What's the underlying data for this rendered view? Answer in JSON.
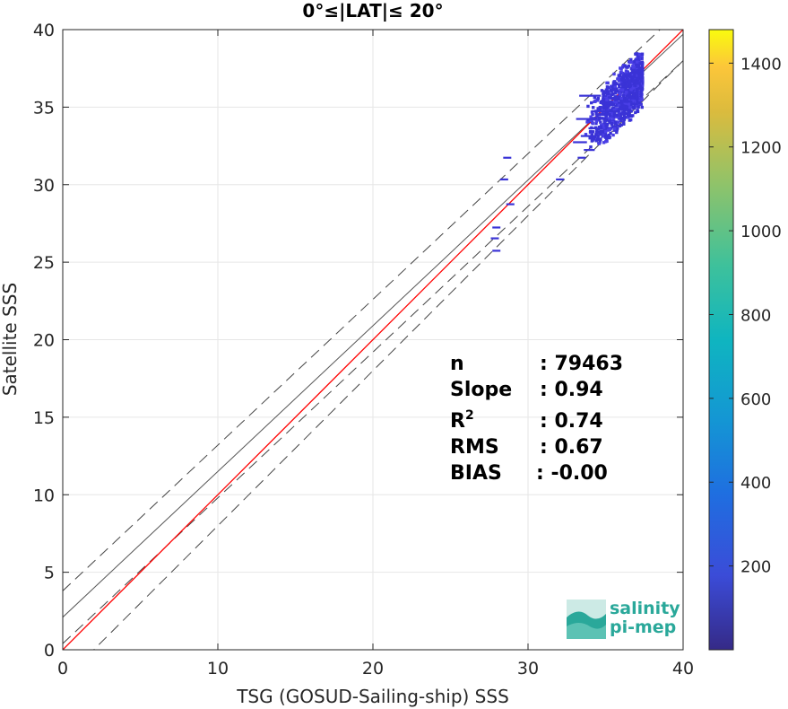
{
  "chart_data": {
    "type": "heatmap",
    "title": "0°≤|LAT|≤ 20°",
    "xlabel": "TSG (GOSUD-Sailing-ship) SSS",
    "ylabel": "Satellite SSS",
    "xlim": [
      0,
      40
    ],
    "ylim": [
      0,
      40
    ],
    "xticks": [
      "0",
      "10",
      "20",
      "30",
      "40"
    ],
    "yticks": [
      "0",
      "5",
      "10",
      "15",
      "20",
      "25",
      "30",
      "35",
      "40"
    ],
    "grid": true,
    "colorbar": {
      "range": [
        0,
        1480
      ],
      "ticks": [
        "200",
        "400",
        "600",
        "800",
        "1000",
        "1200",
        "1400"
      ],
      "colormap": "parula"
    },
    "lines": {
      "identity": {
        "slope": 1,
        "intercept": 0,
        "color": "#000000"
      },
      "identity_offsets": [
        2,
        -2
      ],
      "fit": {
        "slope": 0.94,
        "intercept": 2.1,
        "color": "#555555"
      },
      "fit_bounds": {
        "upper_intercept": 3.8,
        "lower_intercept": 0.4,
        "color": "#444444"
      },
      "regression": {
        "slope": 1.0,
        "intercept": 0,
        "color": "#ff0000"
      }
    },
    "density_cluster": {
      "x_range": [
        33,
        37.3
      ],
      "y_range": [
        32.5,
        38.6
      ],
      "color": "#3a33d6"
    },
    "sparse_points": [
      {
        "x": 28.4,
        "y": 31.8
      },
      {
        "x": 28.2,
        "y": 30.4
      },
      {
        "x": 28.6,
        "y": 28.8
      },
      {
        "x": 27.7,
        "y": 27.3
      },
      {
        "x": 27.6,
        "y": 26.6
      },
      {
        "x": 27.7,
        "y": 25.8
      },
      {
        "x": 31.8,
        "y": 30.4
      },
      {
        "x": 33.2,
        "y": 31.8
      }
    ],
    "stats": [
      {
        "label": "n",
        "value": ": 79463"
      },
      {
        "label": "Slope",
        "value": ": 0.94"
      },
      {
        "label": "R",
        "sup": "2",
        "value": ": 0.74"
      },
      {
        "label": "RMS",
        "value": ": 0.67"
      },
      {
        "label": "BIAS",
        "value": ": -0.00"
      }
    ]
  },
  "logo": {
    "line1": "salinity",
    "line2": "pi-mep"
  }
}
